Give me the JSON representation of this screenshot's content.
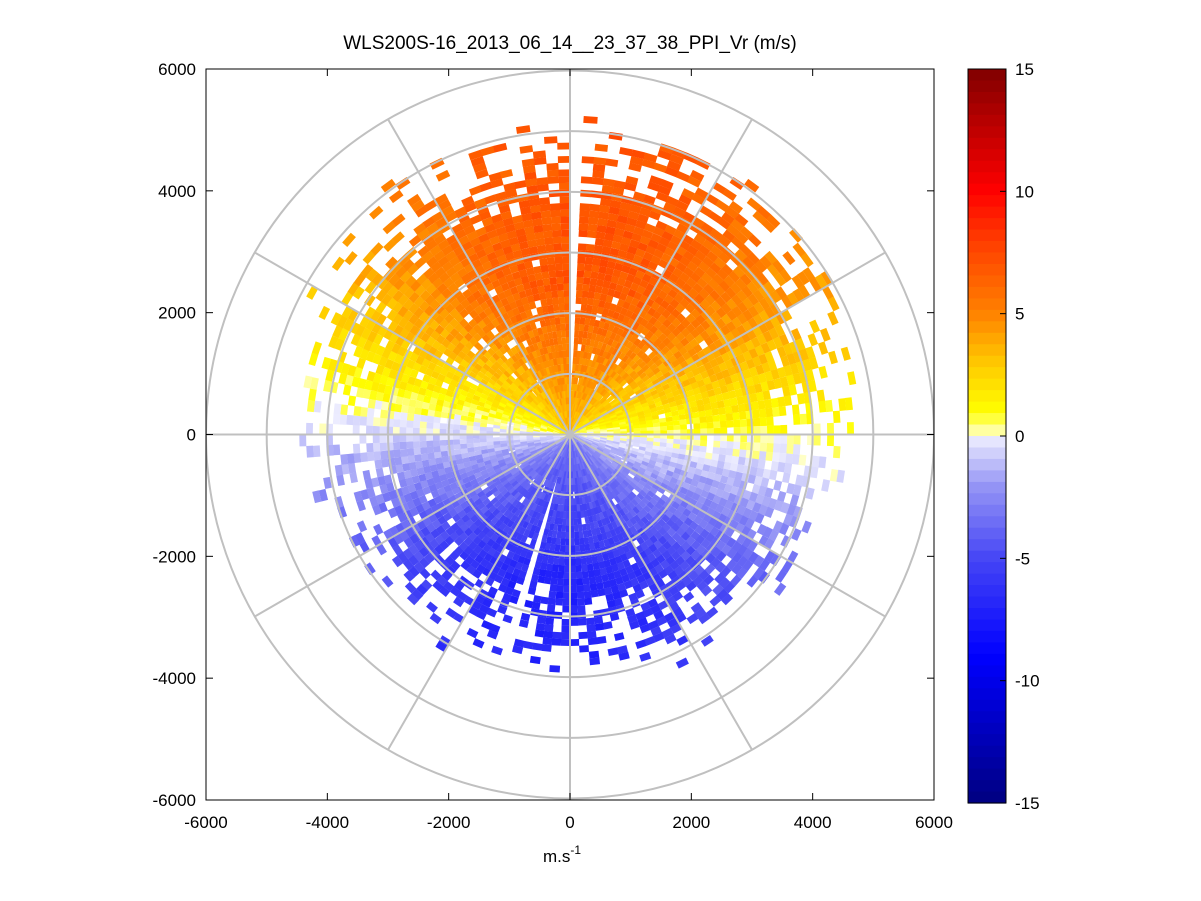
{
  "chart_data": {
    "type": "heatmap",
    "subtype": "polar-ppi",
    "title": "WLS200S-16_2013_06_14__23_37_38_PPI_Vr (m/s)",
    "xlabel": "m.s",
    "xlabel_superscript": "-1",
    "ylabel": "",
    "xlim": [
      -6000,
      6000
    ],
    "ylim": [
      -6000,
      6000
    ],
    "xticks": [
      -6000,
      -4000,
      -2000,
      0,
      2000,
      4000,
      6000
    ],
    "yticks": [
      6000,
      4000,
      2000,
      0,
      -2000,
      -4000,
      -6000
    ],
    "xtick_labels": [
      "-6000",
      "-4000",
      "-2000",
      "0",
      "2000",
      "4000",
      "6000"
    ],
    "ytick_labels": [
      "6000",
      "4000",
      "2000",
      "0",
      "-2000",
      "-4000",
      "-6000"
    ],
    "range_rings_m": [
      1000,
      2000,
      3000,
      4000,
      5000,
      6000
    ],
    "spokes_deg": [
      0,
      30,
      60,
      90,
      120,
      150,
      180,
      210,
      240,
      270,
      300,
      330
    ],
    "colorbar": {
      "min": -15,
      "max": 15,
      "ticks": [
        15,
        10,
        5,
        0,
        -5,
        -10,
        -15
      ],
      "tick_labels": [
        "15",
        "10",
        "5",
        "0",
        "-5",
        "-10",
        "-15"
      ],
      "colormap": "blue-white-yellow-red"
    },
    "field": {
      "description_units": "m/s",
      "mean_wind_toward_deg": 0,
      "velocity_amplitude": 7,
      "zero_line_tilt_deg": 5,
      "max_range_m": 5000,
      "sparse_range_m": 6000,
      "gaps_deg": [
        1,
        197
      ]
    },
    "colors": {
      "dark_red": "#800000",
      "red": "#ff0000",
      "orange": "#ff8000",
      "yellow": "#ffff00",
      "white": "#ffffff",
      "blue": "#0000ff",
      "dark_blue": "#00008b",
      "grid": "#c0c0c0"
    }
  }
}
